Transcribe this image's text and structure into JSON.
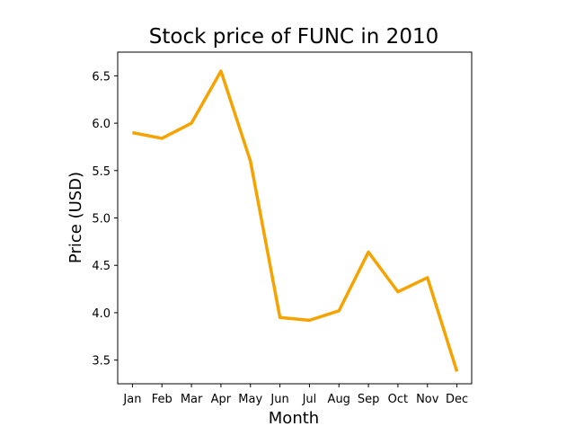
{
  "chart_data": {
    "type": "line",
    "title": "Stock price of FUNC in 2010",
    "xlabel": "Month",
    "ylabel": "Price (USD)",
    "categories": [
      "Jan",
      "Feb",
      "Mar",
      "Apr",
      "May",
      "Jun",
      "Jul",
      "Aug",
      "Sep",
      "Oct",
      "Nov",
      "Dec"
    ],
    "series": [
      {
        "values": [
          5.9,
          5.84,
          6.0,
          6.55,
          5.6,
          3.95,
          3.92,
          4.02,
          4.64,
          4.22,
          4.37,
          3.38
        ],
        "color": "#f5a300"
      }
    ],
    "ylim": [
      3.25,
      6.75
    ],
    "yticks": [
      3.5,
      4.0,
      4.5,
      5.0,
      5.5,
      6.0,
      6.5
    ],
    "ytick_labels": [
      "3.5",
      "4.0",
      "4.5",
      "5.0",
      "5.5",
      "6.0",
      "6.5"
    ],
    "grid": false,
    "legend": "none"
  }
}
